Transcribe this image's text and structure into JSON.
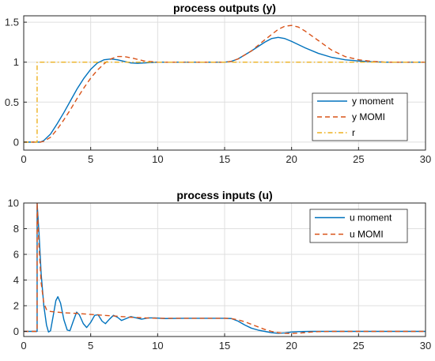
{
  "chart_data": [
    {
      "type": "line",
      "title": "process outputs (y)",
      "xlabel": "",
      "ylabel": "",
      "xlim": [
        0,
        30
      ],
      "ylim": [
        -0.1,
        1.58
      ],
      "xticks": [
        0,
        5,
        10,
        15,
        20,
        25,
        30
      ],
      "yticks": [
        0,
        0.5,
        1,
        1.5
      ],
      "ytick_labels": [
        "0",
        "0.5",
        "1",
        "1.5"
      ],
      "grid": true,
      "legend_position": "bottom-right",
      "series": [
        {
          "name": "y moment",
          "color": "#0072BD",
          "style": "solid",
          "points": [
            [
              0,
              0
            ],
            [
              0.5,
              0
            ],
            [
              1,
              0
            ],
            [
              1.25,
              0
            ],
            [
              1.5,
              0.02
            ],
            [
              2,
              0.1
            ],
            [
              2.5,
              0.23
            ],
            [
              3,
              0.37
            ],
            [
              3.5,
              0.52
            ],
            [
              4,
              0.67
            ],
            [
              4.5,
              0.8
            ],
            [
              5,
              0.91
            ],
            [
              5.5,
              0.99
            ],
            [
              6,
              1.03
            ],
            [
              6.5,
              1.04
            ],
            [
              7,
              1.03
            ],
            [
              7.5,
              1.01
            ],
            [
              8,
              0.99
            ],
            [
              8.5,
              0.985
            ],
            [
              9,
              0.99
            ],
            [
              10,
              1
            ],
            [
              12,
              1
            ],
            [
              14,
              1
            ],
            [
              15,
              1
            ],
            [
              15.5,
              1.01
            ],
            [
              16,
              1.04
            ],
            [
              17,
              1.14
            ],
            [
              18,
              1.25
            ],
            [
              18.5,
              1.295
            ],
            [
              19,
              1.31
            ],
            [
              19.5,
              1.295
            ],
            [
              20,
              1.26
            ],
            [
              21,
              1.18
            ],
            [
              22,
              1.11
            ],
            [
              23,
              1.06
            ],
            [
              24,
              1.03
            ],
            [
              25,
              1.015
            ],
            [
              26,
              1.005
            ],
            [
              27,
              1
            ],
            [
              30,
              1
            ]
          ]
        },
        {
          "name": "y MOMI",
          "color": "#D95319",
          "style": "dashed",
          "points": [
            [
              0,
              0
            ],
            [
              0.5,
              0
            ],
            [
              1,
              0
            ],
            [
              1.25,
              0
            ],
            [
              1.5,
              0.01
            ],
            [
              2,
              0.06
            ],
            [
              2.5,
              0.16
            ],
            [
              3,
              0.28
            ],
            [
              3.5,
              0.41
            ],
            [
              4,
              0.55
            ],
            [
              4.5,
              0.68
            ],
            [
              5,
              0.8
            ],
            [
              5.5,
              0.9
            ],
            [
              6,
              0.98
            ],
            [
              6.5,
              1.04
            ],
            [
              7,
              1.07
            ],
            [
              7.5,
              1.07
            ],
            [
              8,
              1.055
            ],
            [
              8.5,
              1.035
            ],
            [
              9,
              1.015
            ],
            [
              10,
              1
            ],
            [
              12,
              1
            ],
            [
              14,
              1
            ],
            [
              15,
              1
            ],
            [
              15.5,
              1.01
            ],
            [
              16,
              1.04
            ],
            [
              17,
              1.14
            ],
            [
              18,
              1.28
            ],
            [
              19,
              1.41
            ],
            [
              19.5,
              1.45
            ],
            [
              20,
              1.46
            ],
            [
              20.5,
              1.44
            ],
            [
              21,
              1.39
            ],
            [
              22,
              1.27
            ],
            [
              23,
              1.15
            ],
            [
              24,
              1.07
            ],
            [
              25,
              1.03
            ],
            [
              26,
              1.01
            ],
            [
              27,
              1
            ],
            [
              30,
              1
            ]
          ]
        },
        {
          "name": "r",
          "color": "#EDB120",
          "style": "dashdot",
          "points": [
            [
              0,
              0
            ],
            [
              1,
              0
            ],
            [
              1,
              1
            ],
            [
              30,
              1
            ]
          ]
        }
      ]
    },
    {
      "type": "line",
      "title": "process inputs (u)",
      "xlabel": "",
      "ylabel": "",
      "xlim": [
        0,
        30
      ],
      "ylim": [
        -0.4,
        10
      ],
      "xticks": [
        0,
        5,
        10,
        15,
        20,
        25,
        30
      ],
      "yticks": [
        0,
        2,
        4,
        6,
        8,
        10
      ],
      "ytick_labels": [
        "0",
        "2",
        "4",
        "6",
        "8",
        "10"
      ],
      "grid": true,
      "legend_position": "top-right",
      "series": [
        {
          "name": "u moment",
          "color": "#0072BD",
          "style": "solid",
          "points": [
            [
              0,
              0
            ],
            [
              1,
              0
            ],
            [
              1,
              10
            ],
            [
              1.15,
              7.5
            ],
            [
              1.3,
              4.5
            ],
            [
              1.5,
              2.0
            ],
            [
              1.7,
              0.5
            ],
            [
              1.85,
              -0.05
            ],
            [
              2.0,
              0.05
            ],
            [
              2.2,
              1.2
            ],
            [
              2.4,
              2.4
            ],
            [
              2.55,
              2.7
            ],
            [
              2.75,
              2.2
            ],
            [
              3.0,
              0.9
            ],
            [
              3.25,
              0.1
            ],
            [
              3.45,
              0.05
            ],
            [
              3.7,
              0.8
            ],
            [
              3.95,
              1.5
            ],
            [
              4.15,
              1.3
            ],
            [
              4.45,
              0.6
            ],
            [
              4.7,
              0.3
            ],
            [
              5.0,
              0.7
            ],
            [
              5.3,
              1.25
            ],
            [
              5.55,
              1.3
            ],
            [
              5.85,
              0.8
            ],
            [
              6.1,
              0.6
            ],
            [
              6.4,
              0.95
            ],
            [
              6.7,
              1.25
            ],
            [
              7.0,
              1.1
            ],
            [
              7.3,
              0.85
            ],
            [
              7.65,
              1.0
            ],
            [
              8.0,
              1.15
            ],
            [
              8.4,
              1.05
            ],
            [
              8.8,
              0.95
            ],
            [
              9.3,
              1.05
            ],
            [
              9.8,
              1.05
            ],
            [
              10.5,
              1.0
            ],
            [
              12,
              1.02
            ],
            [
              14,
              1.02
            ],
            [
              15,
              1.02
            ],
            [
              15.5,
              1.0
            ],
            [
              16.0,
              0.8
            ],
            [
              16.5,
              0.5
            ],
            [
              17.0,
              0.25
            ],
            [
              17.5,
              0.1
            ],
            [
              18.0,
              0.0
            ],
            [
              18.5,
              -0.1
            ],
            [
              19.0,
              -0.15
            ],
            [
              19.5,
              -0.12
            ],
            [
              20.0,
              -0.05
            ],
            [
              20.5,
              -0.02
            ],
            [
              21.5,
              0
            ],
            [
              30,
              0
            ]
          ]
        },
        {
          "name": "u MOMI",
          "color": "#D95319",
          "style": "dashed",
          "points": [
            [
              0,
              0
            ],
            [
              1,
              0
            ],
            [
              1,
              10
            ],
            [
              1.15,
              6.5
            ],
            [
              1.3,
              3.8
            ],
            [
              1.5,
              2.2
            ],
            [
              1.7,
              1.7
            ],
            [
              2.0,
              1.55
            ],
            [
              2.5,
              1.5
            ],
            [
              3.0,
              1.45
            ],
            [
              4.0,
              1.4
            ],
            [
              5.0,
              1.32
            ],
            [
              6.0,
              1.25
            ],
            [
              7.0,
              1.18
            ],
            [
              8.0,
              1.1
            ],
            [
              9.0,
              1.05
            ],
            [
              10.0,
              1.02
            ],
            [
              12,
              1.02
            ],
            [
              14,
              1.02
            ],
            [
              15,
              1.02
            ],
            [
              15.5,
              1.0
            ],
            [
              16.0,
              0.9
            ],
            [
              16.5,
              0.75
            ],
            [
              17.0,
              0.55
            ],
            [
              17.5,
              0.35
            ],
            [
              18.0,
              0.15
            ],
            [
              18.5,
              0.0
            ],
            [
              19.0,
              -0.1
            ],
            [
              19.5,
              -0.15
            ],
            [
              20.0,
              -0.17
            ],
            [
              20.5,
              -0.14
            ],
            [
              21.0,
              -0.1
            ],
            [
              21.5,
              -0.05
            ],
            [
              22.0,
              -0.02
            ],
            [
              23.0,
              0
            ],
            [
              30,
              0
            ]
          ]
        }
      ]
    }
  ]
}
